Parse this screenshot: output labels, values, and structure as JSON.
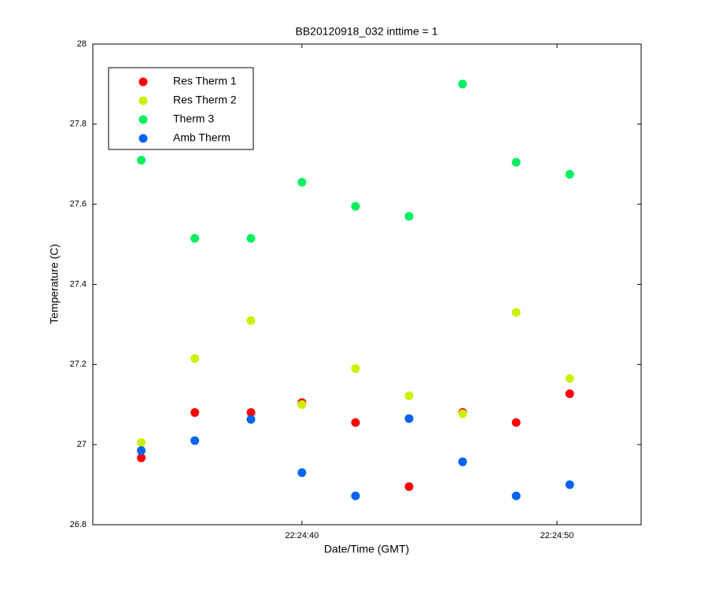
{
  "chart_data": {
    "type": "scatter",
    "title": "BB20120918_032 inttime = 1",
    "x_label": "Date/Time (GMT)",
    "y_label": "Temperature (C)",
    "x": [
      "22:24:33.7",
      "22:24:35.8",
      "22:24:38.0",
      "22:24:40.0",
      "22:24:42.1",
      "22:24:44.2",
      "22:24:46.3",
      "22:24:48.4",
      "22:24:50.5"
    ],
    "series": [
      {
        "name": "Res Therm 1",
        "color": "#ff0000",
        "values": [
          26.967,
          27.08,
          27.08,
          27.105,
          27.055,
          26.895,
          27.08,
          27.055,
          27.127
        ]
      },
      {
        "name": "Res Therm 2",
        "color": "#ccf000",
        "values": [
          27.005,
          27.215,
          27.31,
          27.1,
          27.19,
          27.122,
          27.077,
          27.33,
          27.165
        ]
      },
      {
        "name": "Therm 3",
        "color": "#00f060",
        "values": [
          27.71,
          27.515,
          27.515,
          27.655,
          27.595,
          27.57,
          27.9,
          27.705,
          27.675
        ]
      },
      {
        "name": "Amb Therm",
        "color": "#0064f0",
        "values": [
          26.985,
          27.01,
          27.063,
          26.93,
          26.872,
          27.065,
          26.957,
          26.872,
          26.9
        ]
      }
    ],
    "xlim": [
      "22:24:31.8",
      "22:24:53.3"
    ],
    "xticks": [
      "22:24:40",
      "22:24:50"
    ],
    "ylim": [
      26.8,
      28
    ],
    "yticks": [
      26.8,
      27,
      27.2,
      27.4,
      27.6,
      27.8,
      28
    ],
    "legend": "northwest"
  }
}
